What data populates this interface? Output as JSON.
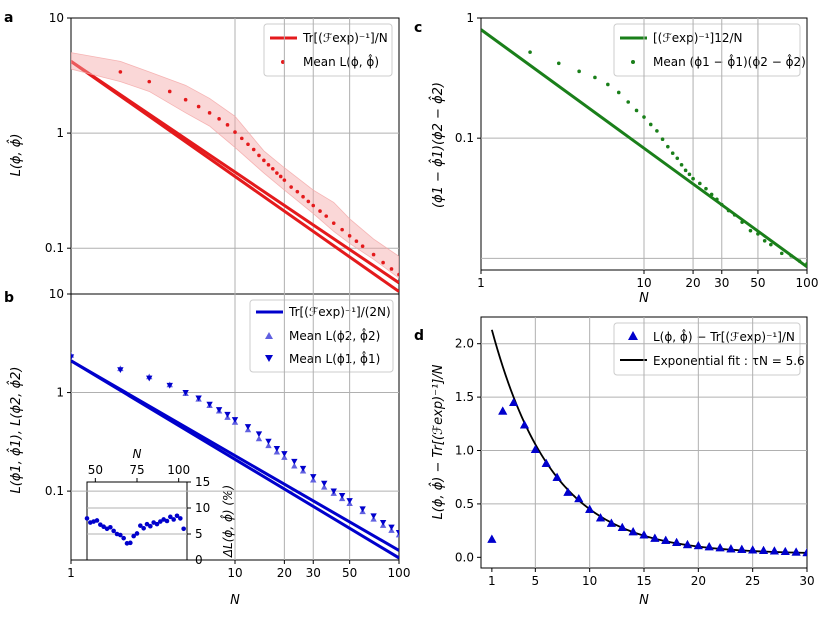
{
  "chart_data": [
    {
      "id": "a",
      "type": "line",
      "panel_label": "a",
      "x_scale": "log",
      "y_scale": "log",
      "xlim": [
        1,
        100
      ],
      "ylim": [
        0.04,
        10
      ],
      "yticks": [
        0.1,
        1,
        10
      ],
      "ytick_labels": [
        "0.1",
        "1",
        "10"
      ],
      "ylabel": "L(ϕ, ϕ̂)",
      "grid_x": [
        10,
        20,
        30,
        50
      ],
      "grid_y": [
        0.1,
        1
      ],
      "legend": {
        "position": "top-right",
        "entries": [
          "Tr[(ℱexp)⁻¹]/N",
          "Mean L(ϕ, ϕ̂)"
        ]
      },
      "series": [
        {
          "name": "Tr[(ℱexp)⁻¹]/N",
          "style": "line",
          "color": "#e41a1c",
          "x": [
            1,
            100
          ],
          "y": [
            4.2,
            0.042
          ]
        },
        {
          "name": "Tr[(ℱexp)⁻¹]/N (upper)",
          "style": "line",
          "color": "#e41a1c",
          "x": [
            1,
            100
          ],
          "y": [
            4.2,
            0.05
          ]
        },
        {
          "name": "Mean L(ϕ, ϕ̂)",
          "style": "dots",
          "color": "#e41a1c",
          "x": [
            2,
            3,
            4,
            5,
            6,
            7,
            8,
            9,
            10,
            11,
            12,
            13,
            14,
            15,
            16,
            17,
            18,
            19,
            20,
            22,
            24,
            26,
            28,
            30,
            33,
            36,
            40,
            45,
            50,
            55,
            60,
            70,
            80,
            90,
            100
          ],
          "y": [
            3.4,
            2.8,
            2.3,
            1.95,
            1.7,
            1.5,
            1.33,
            1.18,
            1.02,
            0.9,
            0.8,
            0.72,
            0.64,
            0.58,
            0.53,
            0.49,
            0.45,
            0.42,
            0.39,
            0.34,
            0.31,
            0.28,
            0.255,
            0.235,
            0.21,
            0.19,
            0.165,
            0.145,
            0.128,
            0.115,
            0.104,
            0.088,
            0.075,
            0.066,
            0.059
          ]
        },
        {
          "name": "spread band",
          "style": "band",
          "color": "#f4a6a6",
          "x": [
            1,
            2,
            3,
            5,
            7,
            10,
            15,
            20,
            30,
            40,
            50,
            70,
            100
          ],
          "lower": [
            3.6,
            2.8,
            2.3,
            1.5,
            1.15,
            0.75,
            0.45,
            0.32,
            0.2,
            0.14,
            0.11,
            0.08,
            0.055
          ],
          "upper": [
            5.0,
            4.2,
            3.4,
            2.6,
            2.0,
            1.4,
            0.7,
            0.5,
            0.32,
            0.25,
            0.18,
            0.12,
            0.085
          ]
        }
      ]
    },
    {
      "id": "b",
      "type": "line",
      "panel_label": "b",
      "x_scale": "log",
      "y_scale": "log",
      "xlim": [
        1,
        100
      ],
      "ylim": [
        0.02,
        10
      ],
      "xticks": [
        1,
        10,
        20,
        30,
        50,
        100
      ],
      "xtick_labels": [
        "1",
        "10",
        "20",
        "30",
        "50",
        "100"
      ],
      "yticks": [
        0.1,
        1,
        10
      ],
      "ytick_labels": [
        "0.1",
        "1",
        "10"
      ],
      "xlabel": "N",
      "ylabel": "L(ϕ1, ϕ̂1), L(ϕ2, ϕ̂2)",
      "grid_x": [
        10,
        20,
        30,
        50
      ],
      "grid_y": [
        0.1,
        1
      ],
      "legend": {
        "position": "top-right",
        "entries": [
          "Tr[(ℱexp)⁻¹]/(2N)",
          "Mean L(ϕ2, ϕ̂2)",
          "Mean L(ϕ1, ϕ̂1)"
        ]
      },
      "series": [
        {
          "name": "Tr[(ℱexp)⁻¹]/(2N)",
          "style": "line",
          "color": "#0000cc",
          "x": [
            1,
            100
          ],
          "y": [
            2.1,
            0.021
          ]
        },
        {
          "name": "Tr[(ℱexp)⁻¹]/(2N) (upper)",
          "style": "line",
          "color": "#0000cc",
          "x": [
            1,
            100
          ],
          "y": [
            2.1,
            0.025
          ]
        },
        {
          "name": "Mean L(ϕ2, ϕ̂2)",
          "style": "triangle-up",
          "color": "#6060e0",
          "x": [
            1,
            2,
            3,
            4,
            5,
            6,
            7,
            8,
            9,
            10,
            12,
            14,
            16,
            18,
            20,
            23,
            26,
            30,
            35,
            40,
            45,
            50,
            60,
            70,
            80,
            90,
            100
          ],
          "y": [
            2.4,
            1.75,
            1.45,
            1.2,
            0.98,
            0.86,
            0.74,
            0.65,
            0.56,
            0.5,
            0.42,
            0.34,
            0.29,
            0.25,
            0.22,
            0.18,
            0.16,
            0.13,
            0.11,
            0.095,
            0.084,
            0.075,
            0.062,
            0.052,
            0.045,
            0.04,
            0.036
          ]
        },
        {
          "name": "Mean L(ϕ1, ϕ̂1)",
          "style": "triangle-down",
          "color": "#0000cc",
          "x": [
            1,
            2,
            3,
            4,
            5,
            6,
            7,
            8,
            9,
            10,
            12,
            14,
            16,
            18,
            20,
            23,
            26,
            30,
            35,
            40,
            45,
            50,
            60,
            70,
            80,
            90,
            100
          ],
          "y": [
            2.3,
            1.7,
            1.4,
            1.18,
            1.0,
            0.88,
            0.76,
            0.67,
            0.6,
            0.53,
            0.45,
            0.38,
            0.32,
            0.27,
            0.24,
            0.2,
            0.17,
            0.14,
            0.12,
            0.1,
            0.09,
            0.08,
            0.066,
            0.056,
            0.048,
            0.043,
            0.038
          ]
        }
      ],
      "inset": {
        "type": "scatter",
        "xlabel": "N",
        "ylabel": "ΔL(ϕ, ϕ̂) (%)",
        "xlim": [
          45,
          105
        ],
        "ylim": [
          0,
          15
        ],
        "xticks": [
          50,
          75,
          100
        ],
        "xtick_labels": [
          "50",
          "75",
          "100"
        ],
        "yticks": [
          0,
          5,
          10,
          15
        ],
        "ytick_labels": [
          "0",
          "5",
          "10",
          "15"
        ],
        "grid_y": [
          5,
          10
        ],
        "color": "#0000cc",
        "x": [
          45,
          47,
          49,
          51,
          53,
          55,
          57,
          59,
          61,
          63,
          65,
          67,
          69,
          71,
          73,
          75,
          77,
          79,
          81,
          83,
          85,
          87,
          89,
          91,
          93,
          95,
          97,
          99,
          101,
          103
        ],
        "y": [
          8,
          7.2,
          7.4,
          7.6,
          6.8,
          6.4,
          6,
          6.3,
          5.6,
          5,
          4.8,
          4.2,
          3.2,
          3.3,
          4.6,
          5.1,
          6.6,
          6.1,
          6.9,
          6.5,
          7.2,
          6.9,
          7.4,
          7.8,
          7.5,
          8.3,
          7.8,
          8.5,
          8.0,
          6.0
        ]
      }
    },
    {
      "id": "c",
      "type": "line",
      "panel_label": "c",
      "x_scale": "log",
      "y_scale": "log",
      "xlim": [
        1,
        100
      ],
      "ylim": [
        0.008,
        1
      ],
      "xticks": [
        1,
        10,
        20,
        30,
        50,
        100
      ],
      "xtick_labels": [
        "1",
        "10",
        "20",
        "30",
        "50",
        "100"
      ],
      "yticks": [
        0.1,
        1
      ],
      "ytick_labels": [
        "0.1",
        "1"
      ],
      "xlabel": "N",
      "ylabel": "(ϕ1 − ϕ̂1)(ϕ2 − ϕ̂2)",
      "grid_x": [
        10,
        20,
        30,
        50
      ],
      "grid_y": [
        0.01,
        0.1
      ],
      "legend": {
        "position": "top-right",
        "entries": [
          "[(ℱexp)⁻¹]12/N",
          "Mean (ϕ1 − ϕ̂1)(ϕ2 − ϕ̂2)"
        ]
      },
      "series": [
        {
          "name": "[(ℱexp)⁻¹]12/N",
          "style": "line",
          "color": "#1a7f1a",
          "x": [
            1,
            100
          ],
          "y": [
            0.8,
            0.0085
          ]
        },
        {
          "name": "Mean (ϕ1 − ϕ̂1)(ϕ2 − ϕ̂2)",
          "style": "dots",
          "color": "#1a7f1a",
          "x": [
            2,
            3,
            4,
            5,
            6,
            7,
            8,
            9,
            10,
            11,
            12,
            13,
            14,
            15,
            16,
            17,
            18,
            19,
            20,
            22,
            24,
            26,
            28,
            30,
            33,
            36,
            40,
            45,
            50,
            55,
            60,
            70,
            80,
            90,
            100
          ],
          "y": [
            0.52,
            0.42,
            0.36,
            0.32,
            0.28,
            0.24,
            0.2,
            0.17,
            0.15,
            0.13,
            0.115,
            0.098,
            0.085,
            0.075,
            0.068,
            0.06,
            0.054,
            0.05,
            0.046,
            0.042,
            0.038,
            0.034,
            0.031,
            0.028,
            0.025,
            0.023,
            0.02,
            0.017,
            0.016,
            0.014,
            0.013,
            0.011,
            0.0105,
            0.0095,
            0.009
          ]
        }
      ]
    },
    {
      "id": "d",
      "type": "line",
      "panel_label": "d",
      "x_scale": "linear",
      "y_scale": "linear",
      "xlim": [
        0,
        30
      ],
      "ylim": [
        -0.1,
        2.25
      ],
      "xticks": [
        1,
        5,
        10,
        15,
        20,
        25,
        30
      ],
      "xtick_labels": [
        "1",
        "5",
        "10",
        "15",
        "20",
        "25",
        "30"
      ],
      "yticks": [
        0,
        0.5,
        1,
        1.5,
        2
      ],
      "ytick_labels": [
        "0.0",
        "0.5",
        "1.0",
        "1.5",
        "2.0"
      ],
      "xlabel": "N",
      "ylabel": "L(ϕ, ϕ̂) − Tr[(ℱexp)⁻¹]/N",
      "grid_x": [
        5,
        10,
        15,
        20,
        25
      ],
      "grid_y": [
        0.5,
        1,
        1.5,
        2
      ],
      "legend": {
        "position": "top-right",
        "entries": [
          "L(ϕ, ϕ̂) − Tr[(ℱexp)⁻¹]/N",
          "Exponential fit : τN = 5.6"
        ]
      },
      "fit": {
        "name": "Exponential fit",
        "tau_N": 5.6,
        "amplitude": 2.5,
        "offset": 0.03,
        "color": "#000000"
      },
      "series": [
        {
          "name": "L(ϕ, ϕ̂) − Tr[(ℱexp)⁻¹]/N",
          "style": "triangle-up",
          "color": "#0000cc",
          "x": [
            1,
            2,
            3,
            4,
            5,
            6,
            7,
            8,
            9,
            10,
            11,
            12,
            13,
            14,
            15,
            16,
            17,
            18,
            19,
            20,
            21,
            22,
            23,
            24,
            25,
            26,
            27,
            28,
            29,
            30
          ],
          "y": [
            0.17,
            1.37,
            1.45,
            1.24,
            1.01,
            0.88,
            0.75,
            0.61,
            0.55,
            0.45,
            0.37,
            0.32,
            0.28,
            0.24,
            0.21,
            0.18,
            0.16,
            0.14,
            0.12,
            0.11,
            0.1,
            0.09,
            0.08,
            0.075,
            0.07,
            0.065,
            0.06,
            0.055,
            0.05,
            0.045
          ]
        }
      ]
    }
  ]
}
